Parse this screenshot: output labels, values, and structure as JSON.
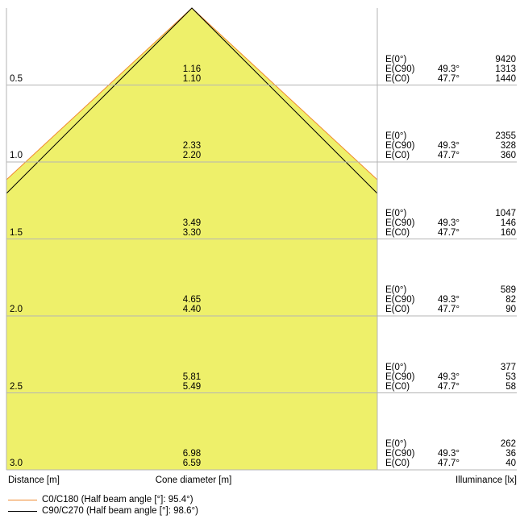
{
  "footer": {
    "distance_label": "Distance [m]",
    "cone_label": "Cone diameter [m]",
    "illuminance_label": "Illuminance [lx]"
  },
  "legend": [
    {
      "label": "C0/C180 (Half beam angle [°]: 95.4°)",
      "color": "#f08a30"
    },
    {
      "label": "C90/C270 (Half beam angle [°]: 98.6°)",
      "color": "#000000"
    }
  ],
  "colors": {
    "cone_fill": "#eef06a",
    "grid": "#b4b4b4"
  },
  "chart_data": {
    "type": "table",
    "rows": [
      {
        "distance": "0.5",
        "d_c90": "1.16",
        "d_c0": "1.10",
        "e0_label": "E(0°)",
        "e0": "9420",
        "c90_label": "E(C90)",
        "c90_angle": "49.3°",
        "c90": "1313",
        "c0_label": "E(C0)",
        "c0_angle": "47.7°",
        "c0": "1440"
      },
      {
        "distance": "1.0",
        "d_c90": "2.33",
        "d_c0": "2.20",
        "e0_label": "E(0°)",
        "e0": "2355",
        "c90_label": "E(C90)",
        "c90_angle": "49.3°",
        "c90": "328",
        "c0_label": "E(C0)",
        "c0_angle": "47.7°",
        "c0": "360"
      },
      {
        "distance": "1.5",
        "d_c90": "3.49",
        "d_c0": "3.30",
        "e0_label": "E(0°)",
        "e0": "1047",
        "c90_label": "E(C90)",
        "c90_angle": "49.3°",
        "c90": "146",
        "c0_label": "E(C0)",
        "c0_angle": "47.7°",
        "c0": "160"
      },
      {
        "distance": "2.0",
        "d_c90": "4.65",
        "d_c0": "4.40",
        "e0_label": "E(0°)",
        "e0": "589",
        "c90_label": "E(C90)",
        "c90_angle": "49.3°",
        "c90": "82",
        "c0_label": "E(C0)",
        "c0_angle": "47.7°",
        "c0": "90"
      },
      {
        "distance": "2.5",
        "d_c90": "5.81",
        "d_c0": "5.49",
        "e0_label": "E(0°)",
        "e0": "377",
        "c90_label": "E(C90)",
        "c90_angle": "49.3°",
        "c90": "53",
        "c0_label": "E(C0)",
        "c0_angle": "47.7°",
        "c0": "58"
      },
      {
        "distance": "3.0",
        "d_c90": "6.98",
        "d_c0": "6.59",
        "e0_label": "E(0°)",
        "e0": "262",
        "c90_label": "E(C90)",
        "c90_angle": "49.3°",
        "c90": "36",
        "c0_label": "E(C0)",
        "c0_angle": "47.7°",
        "c0": "40"
      }
    ]
  }
}
